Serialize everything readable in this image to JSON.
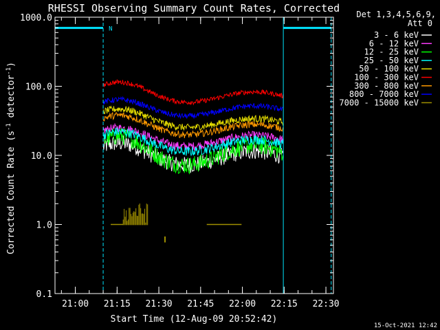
{
  "chart_data": {
    "type": "line",
    "title": "RHESSI Observing Summary Count Rates, Corrected",
    "xlabel": "Start Time (12-Aug-09 20:52:42)",
    "ylabel_parts": [
      "Corrected Count Rate (s",
      "-1",
      " detector",
      "-1",
      ")"
    ],
    "yscale": "log",
    "ylim": [
      0.1,
      1000.0
    ],
    "xlim_minutes": [
      0,
      100
    ],
    "y_ticks": [
      {
        "v": 0.1,
        "label": "0.1"
      },
      {
        "v": 1.0,
        "label": "1.0"
      },
      {
        "v": 10.0,
        "label": "10.0"
      },
      {
        "v": 100.0,
        "label": "100.0"
      },
      {
        "v": 1000.0,
        "label": "1000.0"
      }
    ],
    "x_ticks": [
      {
        "t": 7.3,
        "label": "21:00"
      },
      {
        "t": 22.3,
        "label": "21:15"
      },
      {
        "t": 37.3,
        "label": "21:30"
      },
      {
        "t": 52.3,
        "label": "21:45"
      },
      {
        "t": 67.3,
        "label": "22:00"
      },
      {
        "t": 82.3,
        "label": "22:15"
      },
      {
        "t": 97.3,
        "label": "22:30"
      }
    ],
    "legend_header": [
      "Det 1,3,4,5,6,9,",
      "Att 0"
    ],
    "legend_placement": "right",
    "series": [
      {
        "name": "3 - 6 keV",
        "color": "#ffffff",
        "base": 6.0,
        "peak1": 15.0,
        "peak2": 11.5,
        "noise": 0.12
      },
      {
        "name": "6 - 12 keV",
        "color": "#ff3cff",
        "base": 11.5,
        "peak1": 25.0,
        "peak2": 19.5,
        "noise": 0.06
      },
      {
        "name": "12 - 25 keV",
        "color": "#00ff00",
        "base": 5.5,
        "peak1": 19.0,
        "peak2": 14.0,
        "noise": 0.13
      },
      {
        "name": "25 - 50 keV",
        "color": "#00ffff",
        "base": 9.5,
        "peak1": 22.0,
        "peak2": 17.0,
        "noise": 0.07
      },
      {
        "name": "50 - 100 keV",
        "color": "#e8e000",
        "base": 22.0,
        "peak1": 47.0,
        "peak2": 34.0,
        "noise": 0.05
      },
      {
        "name": "100 - 300 keV",
        "color": "#ff0000",
        "base": 50.0,
        "peak1": 115.0,
        "peak2": 83.0,
        "noise": 0.035
      },
      {
        "name": "300 - 800 keV",
        "color": "#ff9a00",
        "base": 17.0,
        "peak1": 38.0,
        "peak2": 28.0,
        "noise": 0.05
      },
      {
        "name": "800 - 7000 keV",
        "color": "#0000ff",
        "base": 32.0,
        "peak1": 64.0,
        "peak2": 52.0,
        "noise": 0.04
      },
      {
        "name": "7000 - 15000 keV",
        "color": "#a09000",
        "base": 1.0,
        "peak1": 2.0,
        "peak2": 1.05,
        "noise": 0.0
      }
    ],
    "peaks_minutes": [
      23.0,
      71.5
    ],
    "nights": [
      {
        "start": 0.0,
        "end": 17.3,
        "label": "N"
      },
      {
        "start": 82.0,
        "end": 99.2,
        "label": ""
      }
    ],
    "night_level": 700.0
  },
  "footer": {
    "timestamp": "15-Oct-2021 12:42"
  },
  "colors": {
    "background": "#000000",
    "axes": "#ffffff",
    "night_marker": "#00e5ff"
  }
}
